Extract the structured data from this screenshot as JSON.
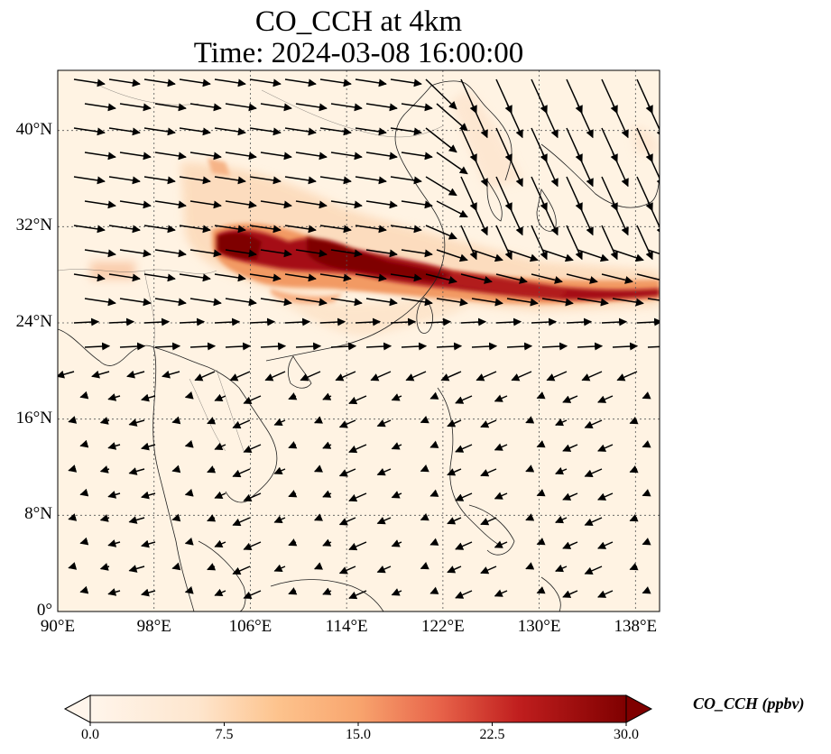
{
  "title_line1": "CO_CCH at 4km",
  "title_line2": "Time: 2024-03-08 16:00:00",
  "map": {
    "lon_range": [
      90,
      140
    ],
    "lat_range": [
      0,
      45
    ],
    "lat_ticks": [
      {
        "value": 40,
        "label": "40°N"
      },
      {
        "value": 32,
        "label": "32°N"
      },
      {
        "value": 24,
        "label": "24°N"
      },
      {
        "value": 16,
        "label": "16°N"
      },
      {
        "value": 8,
        "label": "8°N"
      },
      {
        "value": 0,
        "label": "0°"
      }
    ],
    "lon_ticks": [
      {
        "value": 90,
        "label": "90°E"
      },
      {
        "value": 98,
        "label": "98°E"
      },
      {
        "value": 106,
        "label": "106°E"
      },
      {
        "value": 114,
        "label": "114°E"
      },
      {
        "value": 122,
        "label": "122°E"
      },
      {
        "value": 130,
        "label": "130°E"
      },
      {
        "value": 138,
        "label": "138°E"
      }
    ],
    "field_colors": {
      "low": "#fff5e8",
      "mid": "#f08a55",
      "high": "#8b0000"
    }
  },
  "colorbar": {
    "label": "CO_CCH (ppbv)",
    "range": [
      0,
      30
    ],
    "ticks": [
      "0.0",
      "7.5",
      "15.0",
      "22.5",
      "30.0"
    ],
    "colors": [
      "#fff5eb",
      "#fdd0a2",
      "#fdae6b",
      "#f16913",
      "#d94801",
      "#a50f15",
      "#7f0000"
    ]
  }
}
